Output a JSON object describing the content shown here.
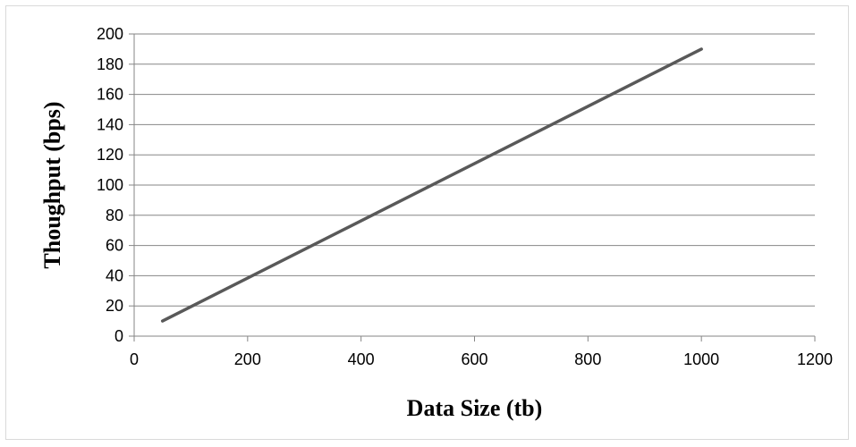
{
  "chart_data": {
    "type": "line",
    "title": "",
    "xlabel": "Data Size (tb)",
    "ylabel": "Thoughput (bps)",
    "xlim": [
      0,
      1200
    ],
    "ylim": [
      0,
      200
    ],
    "xticks": [
      0,
      200,
      400,
      600,
      800,
      1000,
      1200
    ],
    "yticks": [
      0,
      20,
      40,
      60,
      80,
      100,
      120,
      140,
      160,
      180,
      200
    ],
    "grid": "horizontal",
    "legend": "none",
    "series": [
      {
        "color": "#595959",
        "x": [
          50,
          1000
        ],
        "y": [
          10,
          190
        ]
      }
    ]
  }
}
